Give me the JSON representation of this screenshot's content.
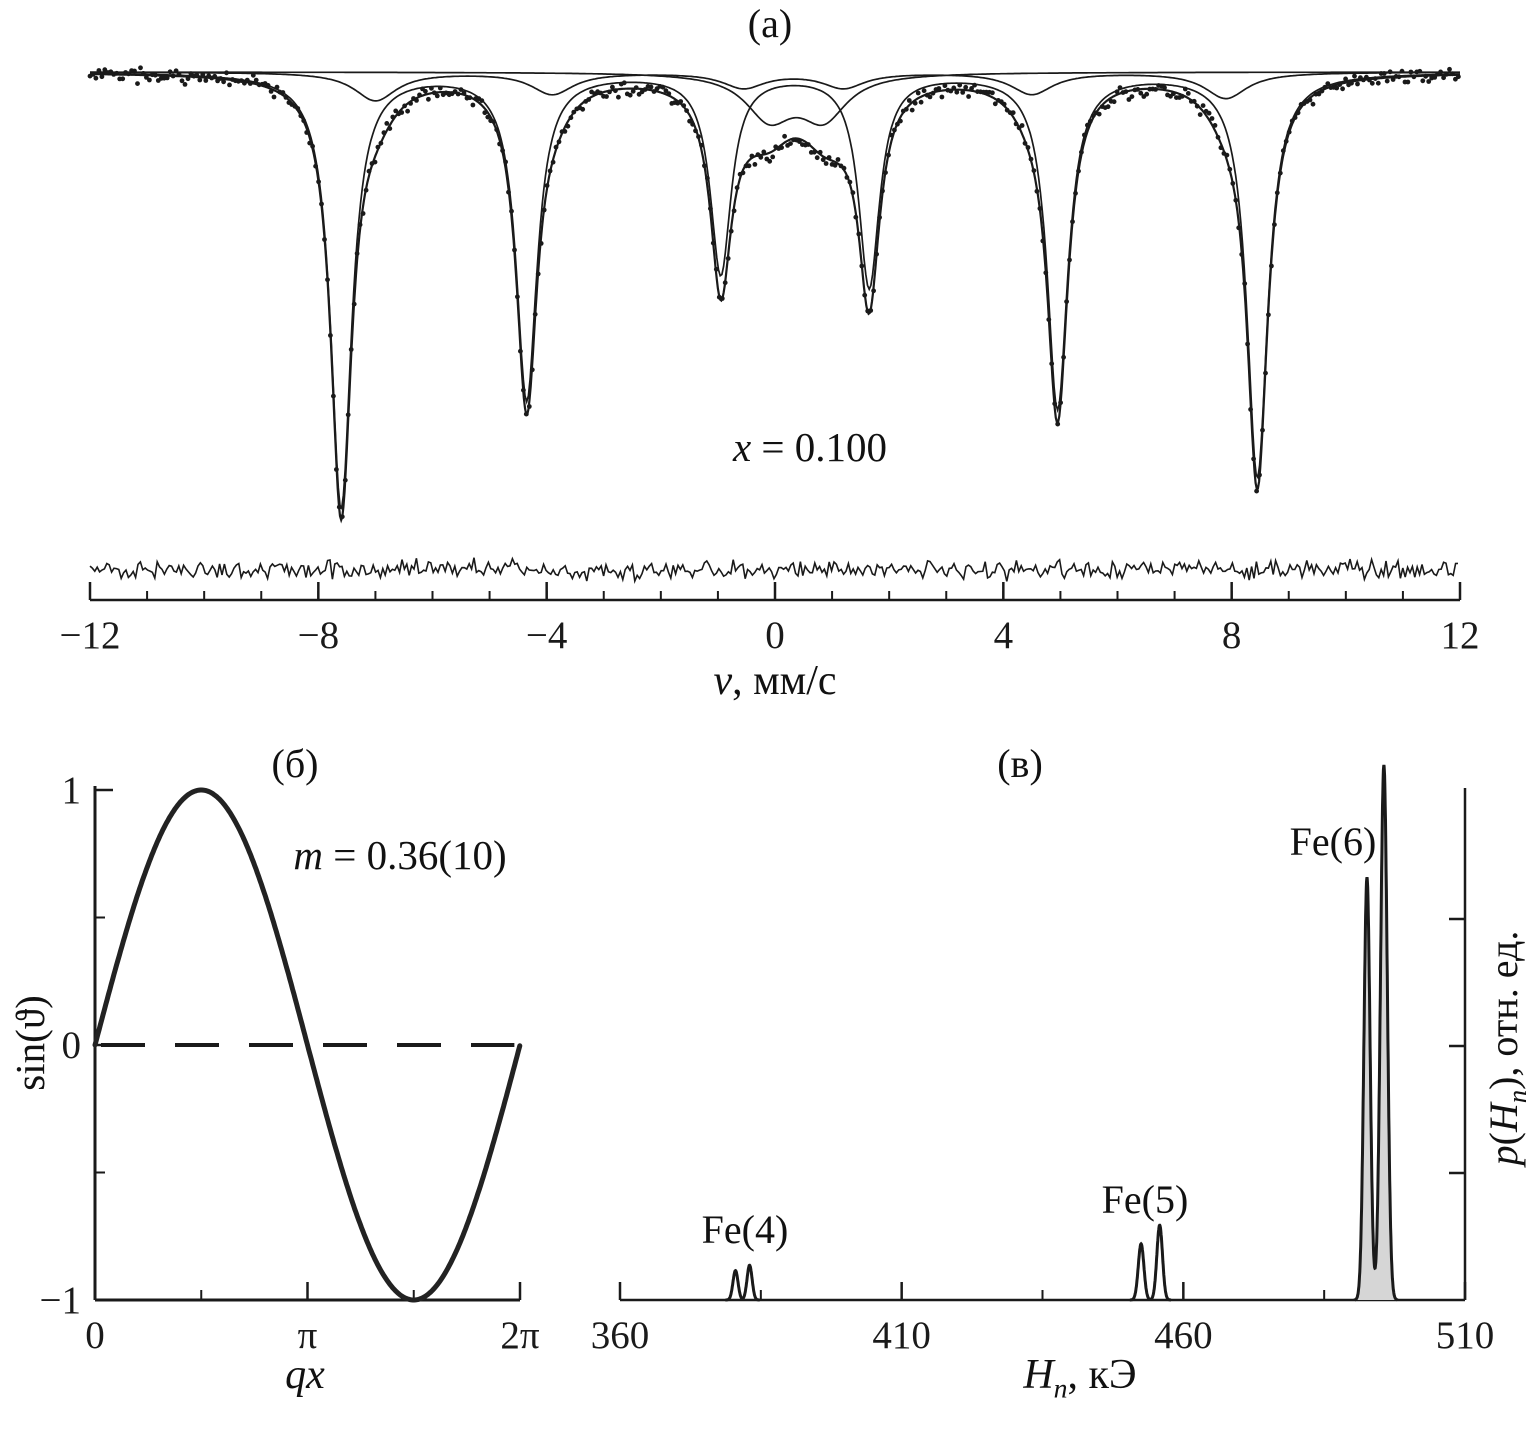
{
  "chart_data": [
    {
      "id": "moessbauer-spectrum",
      "type": "scatter",
      "tag": "(а)",
      "annotation": {
        "var": "x",
        "rest": " = 0.100"
      },
      "xlabel": {
        "var": "v",
        "rest": ", мм/с"
      },
      "xlim": [
        -12,
        12
      ],
      "xticks": [
        {
          "v": -12,
          "label": "−12"
        },
        {
          "v": -8,
          "label": "−8"
        },
        {
          "v": -4,
          "label": "−4"
        },
        {
          "v": 0,
          "label": "0"
        },
        {
          "v": 4,
          "label": "4"
        },
        {
          "v": 8,
          "label": "8"
        },
        {
          "v": 12,
          "label": "12"
        }
      ],
      "components": [
        {
          "name": "sextet-main",
          "width": 0.22,
          "lines": [
            {
              "center": -7.6,
              "depth": 1.0
            },
            {
              "center": -4.35,
              "depth": 0.75
            },
            {
              "center": -0.95,
              "depth": 0.46
            },
            {
              "center": 1.65,
              "depth": 0.49
            },
            {
              "center": 4.95,
              "depth": 0.77
            },
            {
              "center": 8.45,
              "depth": 0.93
            }
          ]
        },
        {
          "name": "sextet-minor",
          "width": 0.45,
          "lines": [
            {
              "center": -7.0,
              "depth": 0.065
            },
            {
              "center": -3.9,
              "depth": 0.05
            },
            {
              "center": -0.55,
              "depth": 0.035
            },
            {
              "center": 1.2,
              "depth": 0.035
            },
            {
              "center": 4.5,
              "depth": 0.05
            },
            {
              "center": 7.9,
              "depth": 0.06
            }
          ]
        },
        {
          "name": "doublet-central",
          "width": 0.5,
          "lines": [
            {
              "center": -0.1,
              "depth": 0.1
            },
            {
              "center": 0.85,
              "depth": 0.1
            }
          ]
        }
      ],
      "noise_sigma": 0.008,
      "has_residual_trace": true
    },
    {
      "id": "modulation-profile",
      "type": "line",
      "tag": "(б)",
      "annotation": {
        "var": "m",
        "rest": " = 0.36(10)"
      },
      "xlabel": {
        "it": "qx"
      },
      "ylabel": "sin(ϑ)",
      "function": "sin",
      "xlim": [
        0,
        6.28319
      ],
      "ylim": [
        -1,
        1
      ],
      "xticks": [
        {
          "v": 0,
          "label": "0"
        },
        {
          "v": 3.14159,
          "label": "π"
        },
        {
          "v": 6.28319,
          "label": "2π"
        }
      ],
      "yticks": [
        {
          "v": 1,
          "label": "1"
        },
        {
          "v": 0,
          "label": "0"
        },
        {
          "v": -1,
          "label": "−1"
        }
      ],
      "dashed_zero_line": true
    },
    {
      "id": "hyperfine-field-distribution",
      "type": "area",
      "tag": "(в)",
      "xlabel": {
        "var": "H",
        "sub": "n",
        "rest": ", кЭ"
      },
      "ylabel": {
        "var1": "p",
        "open": "(",
        "var2": "H",
        "sub": "n",
        "rest": "), отн. ед."
      },
      "xlim": [
        360,
        510
      ],
      "xticks": [
        {
          "v": 360,
          "label": "360"
        },
        {
          "v": 410,
          "label": "410"
        },
        {
          "v": 460,
          "label": "460"
        },
        {
          "v": 510,
          "label": "510"
        }
      ],
      "groups": [
        {
          "label": "Fe(4)",
          "fill": false,
          "peaks": [
            {
              "center": 380.5,
              "height": 0.055,
              "sigma": 0.45
            },
            {
              "center": 383.0,
              "height": 0.065,
              "sigma": 0.45
            }
          ]
        },
        {
          "label": "Fe(5)",
          "fill": false,
          "peaks": [
            {
              "center": 452.5,
              "height": 0.105,
              "sigma": 0.5
            },
            {
              "center": 455.8,
              "height": 0.14,
              "sigma": 0.5
            }
          ]
        },
        {
          "label": "Fe(6)",
          "fill": true,
          "fill_color": "#d6d6d6",
          "peaks": [
            {
              "center": 492.6,
              "height": 0.79,
              "sigma": 0.55
            },
            {
              "center": 495.6,
              "height": 1.0,
              "sigma": 0.6
            }
          ]
        }
      ]
    }
  ],
  "colors": {
    "ink": "#1a1a1a",
    "background": "#ffffff",
    "fe6_fill": "#d6d6d6"
  }
}
